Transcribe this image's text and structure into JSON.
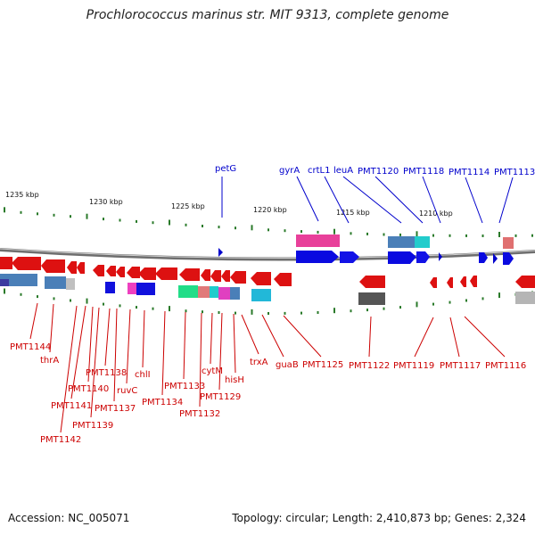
{
  "title": "Prochlorococcus marinus str. MIT 9313, complete genome",
  "footer": {
    "accession": "Accession: NC_005071",
    "summary": "Topology: circular; Length: 2,410,873 bp; Genes: 2,324"
  },
  "scale_labels": [
    "1235 kbp",
    "1230 kbp",
    "1225 kbp",
    "1220 kbp",
    "1215 kbp",
    "1210 kbp"
  ],
  "colors": {
    "forward": "#0000cc",
    "reverse": "#cc0000",
    "backbone": "#777777",
    "tick": "#2a7a2a"
  },
  "forward_genes": [
    "petG",
    "gyrA",
    "crtL1",
    "leuA",
    "PMT1120",
    "PMT1118",
    "PMT1114",
    "PMT1113"
  ],
  "reverse_genes": [
    "PMT1144",
    "thrA",
    "PMT1142",
    "PMT1141",
    "PMT1140",
    "PMT1139",
    "PMT1138",
    "PMT1137",
    "ruvC",
    "chlI",
    "PMT1134",
    "PMT1133",
    "PMT1132",
    "cytM",
    "PMT1129",
    "hisH",
    "trxA",
    "guaB",
    "PMT1125",
    "PMT1122",
    "PMT1119",
    "PMT1117",
    "PMT1116"
  ]
}
